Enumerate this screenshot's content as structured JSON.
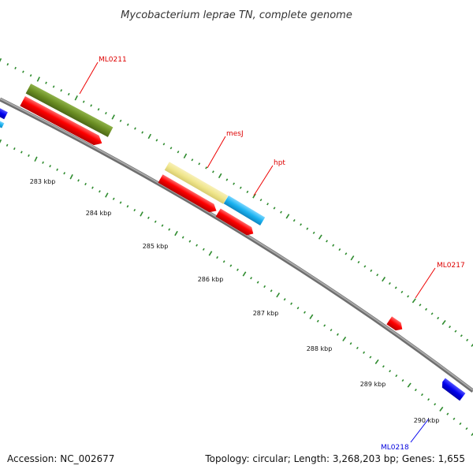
{
  "title": "Mycobacterium leprae TN, complete genome",
  "footer": {
    "accession_label": "Accession: NC_002677",
    "summary_label": "Topology: circular; Length: 3,268,203 bp; Genes: 1,655"
  },
  "colors": {
    "backbone": "#8a8a8a",
    "tick": "#2e8b2e",
    "gene_red": "#ff0000",
    "gene_olive": "#6b8e23",
    "gene_khaki": "#f0e68c",
    "gene_cyan": "#1ab2f0",
    "gene_blue": "#0000ee"
  },
  "scale": {
    "labels": [
      "283 kbp",
      "284 kbp",
      "285 kbp",
      "286 kbp",
      "287 kbp",
      "288 kbp",
      "289 kbp",
      "290 kbp"
    ]
  },
  "genes": {
    "ml0211": "ML0211",
    "mesj": "mesJ",
    "hpt": "hpt",
    "ml0217": "ML0217",
    "ml0218": "ML0218"
  }
}
